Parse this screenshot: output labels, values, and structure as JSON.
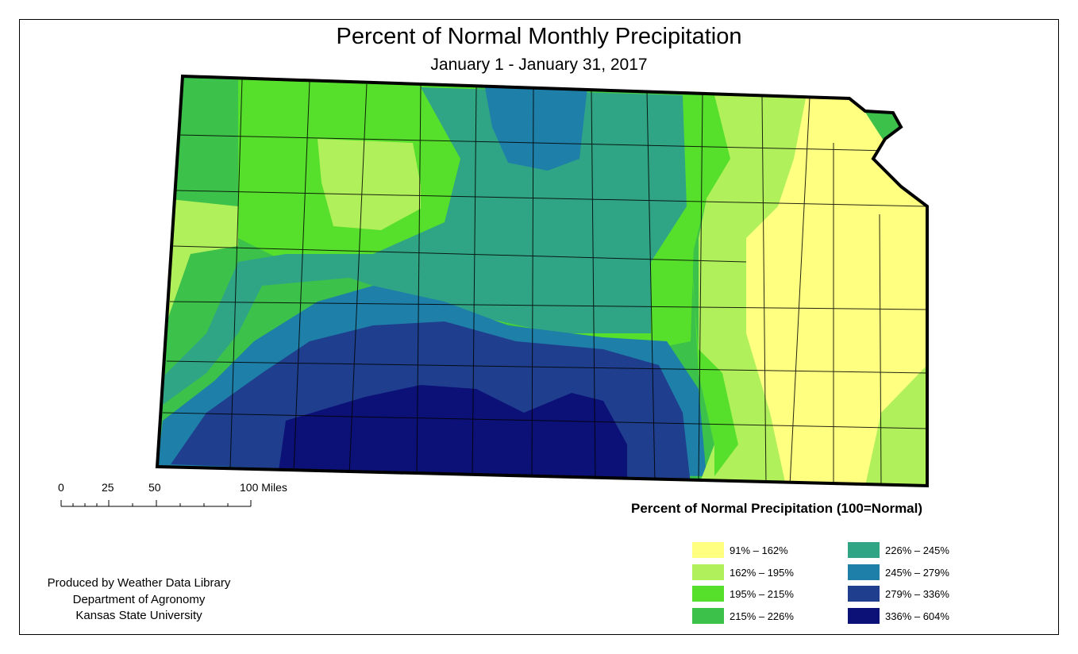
{
  "title": "Percent of Normal Monthly Precipitation",
  "subtitle": "January 1 - January 31, 2017",
  "scale_bar": {
    "labels": [
      "0",
      "25",
      "50",
      "100 Miles"
    ]
  },
  "credits": {
    "line1": "Produced by Weather Data Library",
    "line2": "Department of Agronomy",
    "line3": "Kansas State University"
  },
  "legend": {
    "title": "Percent of Normal Precipitation (100=Normal)",
    "classes": [
      {
        "label": "91% – 162%",
        "color": "#ffff80"
      },
      {
        "label": "162% – 195%",
        "color": "#b0f05a"
      },
      {
        "label": "195% – 215%",
        "color": "#56e02b"
      },
      {
        "label": "215% – 226%",
        "color": "#3cc14a"
      },
      {
        "label": "226% – 245%",
        "color": "#30a585"
      },
      {
        "label": "245% – 279%",
        "color": "#1e7fa8"
      },
      {
        "label": "279% – 336%",
        "color": "#1f3f8e"
      },
      {
        "label": "336% – 604%",
        "color": "#0c1177"
      }
    ]
  }
}
